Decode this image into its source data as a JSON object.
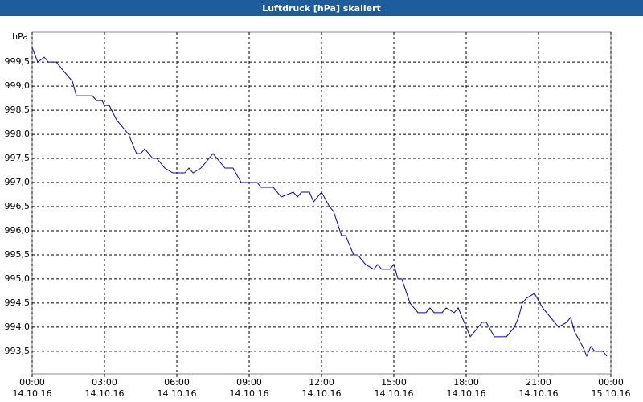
{
  "chart_data": {
    "type": "line",
    "title": "Luftdruck [hPa] skaliert",
    "y_label": "hPa",
    "x": [
      0,
      0.23,
      0.5,
      0.67,
      1.0,
      1.33,
      1.67,
      1.83,
      2.5,
      2.67,
      2.9,
      3.0,
      3.2,
      3.5,
      4.0,
      4.33,
      4.5,
      4.67,
      5.0,
      5.17,
      5.5,
      5.83,
      6.33,
      6.5,
      6.67,
      7.0,
      7.5,
      8.0,
      8.33,
      8.67,
      9.33,
      9.5,
      10.0,
      10.33,
      10.83,
      11.0,
      11.17,
      11.5,
      11.67,
      12.0,
      12.33,
      12.5,
      12.83,
      13.0,
      13.33,
      13.5,
      13.83,
      14.17,
      14.33,
      14.5,
      14.83,
      15.0,
      15.17,
      15.33,
      15.67,
      16.0,
      16.33,
      16.5,
      16.67,
      17.0,
      17.17,
      17.5,
      17.67,
      17.83,
      18.17,
      18.67,
      18.83,
      19.17,
      19.67,
      20.0,
      20.17,
      20.33,
      20.5,
      20.83,
      21.17,
      21.5,
      21.83,
      22.17,
      22.33,
      22.5,
      22.83,
      23.0,
      23.17,
      23.33,
      23.67,
      23.83
    ],
    "series": [
      {
        "name": "Luftdruck",
        "color": "#0000cc",
        "values": [
          999.8,
          999.5,
          999.6,
          999.5,
          999.5,
          999.3,
          999.1,
          998.8,
          998.8,
          998.7,
          998.7,
          998.6,
          998.6,
          998.3,
          998.0,
          997.6,
          997.6,
          997.7,
          997.5,
          997.5,
          997.3,
          997.2,
          997.2,
          997.3,
          997.2,
          997.3,
          997.6,
          997.3,
          997.3,
          997.0,
          997.0,
          996.9,
          996.9,
          996.7,
          996.8,
          996.7,
          996.8,
          996.8,
          996.6,
          996.8,
          996.5,
          996.4,
          995.9,
          995.9,
          995.5,
          995.5,
          995.3,
          995.2,
          995.3,
          995.2,
          995.2,
          995.3,
          995.0,
          995.0,
          994.5,
          994.3,
          994.3,
          994.4,
          994.3,
          994.3,
          994.4,
          994.3,
          994.4,
          994.2,
          993.8,
          994.1,
          994.1,
          993.8,
          993.8,
          994.0,
          994.2,
          994.5,
          994.6,
          994.7,
          994.4,
          994.2,
          994.0,
          994.1,
          994.2,
          993.9,
          993.6,
          993.4,
          993.6,
          993.5,
          993.5,
          993.4
        ]
      }
    ],
    "xlim": [
      0,
      24
    ],
    "xticks": [
      {
        "value": 0,
        "label": "00:00\n14.10.16"
      },
      {
        "value": 3,
        "label": "03:00\n14.10.16"
      },
      {
        "value": 6,
        "label": "06:00\n14.10.16"
      },
      {
        "value": 9,
        "label": "09:00\n14.10.16"
      },
      {
        "value": 12,
        "label": "12:00\n14.10.16"
      },
      {
        "value": 15,
        "label": "15:00\n14.10.16"
      },
      {
        "value": 18,
        "label": "18:00\n14.10.16"
      },
      {
        "value": 21,
        "label": "21:00\n14.10.16"
      },
      {
        "value": 24,
        "label": "00:00\n15.10.16"
      }
    ],
    "ylim": [
      993.03,
      1000.12
    ],
    "yticks": [
      {
        "value": 993.5,
        "label": "993,5"
      },
      {
        "value": 994,
        "label": "994,0"
      },
      {
        "value": 994.5,
        "label": "994,5"
      },
      {
        "value": 995,
        "label": "995,0"
      },
      {
        "value": 995.5,
        "label": "995,5"
      },
      {
        "value": 996,
        "label": "996,0"
      },
      {
        "value": 996.5,
        "label": "996,5"
      },
      {
        "value": 997,
        "label": "997,0"
      },
      {
        "value": 997.5,
        "label": "997,5"
      },
      {
        "value": 998,
        "label": "998,0"
      },
      {
        "value": 998.5,
        "label": "998,5"
      },
      {
        "value": 999,
        "label": "999,0"
      },
      {
        "value": 999.5,
        "label": "999,5"
      }
    ],
    "grid": true
  }
}
